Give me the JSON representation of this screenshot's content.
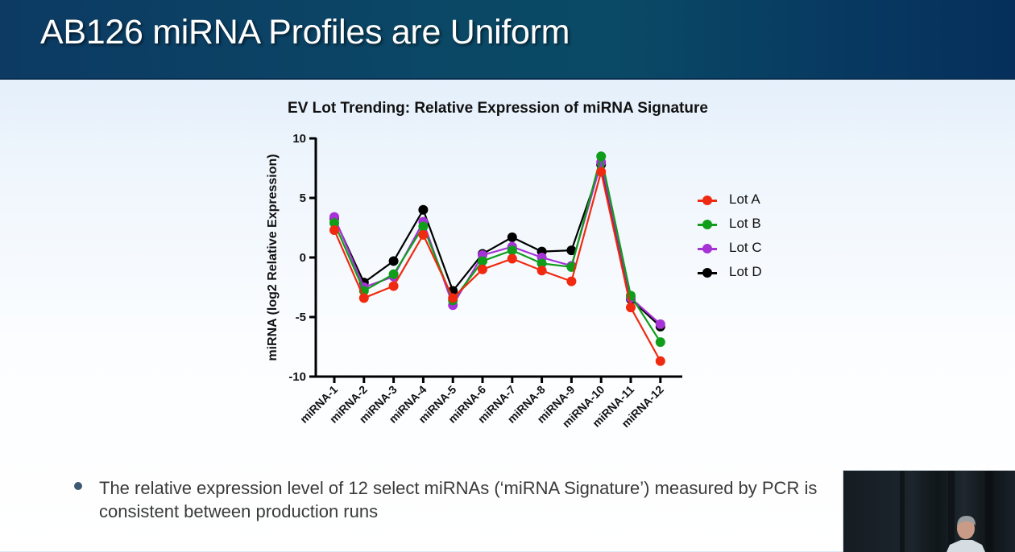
{
  "slide": {
    "title": "AB126 miRNA Profiles are Uniform",
    "bullet": "The relative expression level of 12 select miRNAs (‘miRNA Signature’) measured by PCR is consistent between production runs"
  },
  "video": {
    "label": "speaker-video"
  },
  "chart_data": {
    "type": "line",
    "title": "EV Lot Trending: Relative Expression of miRNA Signature",
    "xlabel": "",
    "ylabel": "miRNA (log2 Relative Expression)",
    "ylim": [
      -10,
      10
    ],
    "yticks": [
      10,
      5,
      0,
      -5,
      -10
    ],
    "ytick_labels": [
      "10",
      "5",
      "0",
      "-5",
      "-10"
    ],
    "grid": false,
    "legend": "right",
    "categories": [
      "miRNA-1",
      "miRNA-2",
      "miRNA-3",
      "miRNA-4",
      "miRNA-5",
      "miRNA-6",
      "miRNA-7",
      "miRNA-8",
      "miRNA-9",
      "miRNA-10",
      "miRNA-11",
      "miRNA-12"
    ],
    "series": [
      {
        "name": "Lot D",
        "color": "#000000",
        "values": [
          3.3,
          -2.1,
          -0.3,
          4.0,
          -2.8,
          0.3,
          1.7,
          0.5,
          0.6,
          7.8,
          -3.5,
          -5.8
        ]
      },
      {
        "name": "Lot C",
        "color": "#a633d6",
        "values": [
          3.4,
          -2.5,
          -1.6,
          3.0,
          -4.0,
          0.2,
          0.9,
          0.0,
          -0.7,
          8.0,
          -3.4,
          -5.6
        ]
      },
      {
        "name": "Lot B",
        "color": "#0f9d1a",
        "values": [
          2.9,
          -2.8,
          -1.4,
          2.6,
          -3.6,
          -0.3,
          0.6,
          -0.5,
          -0.8,
          8.5,
          -3.2,
          -7.1
        ]
      },
      {
        "name": "Lot A",
        "color": "#f02a10",
        "values": [
          2.3,
          -3.4,
          -2.4,
          1.9,
          -3.4,
          -1.0,
          -0.1,
          -1.1,
          -2.0,
          7.2,
          -4.2,
          -8.7
        ]
      }
    ],
    "legend_order": [
      "Lot A",
      "Lot B",
      "Lot C",
      "Lot D"
    ]
  }
}
